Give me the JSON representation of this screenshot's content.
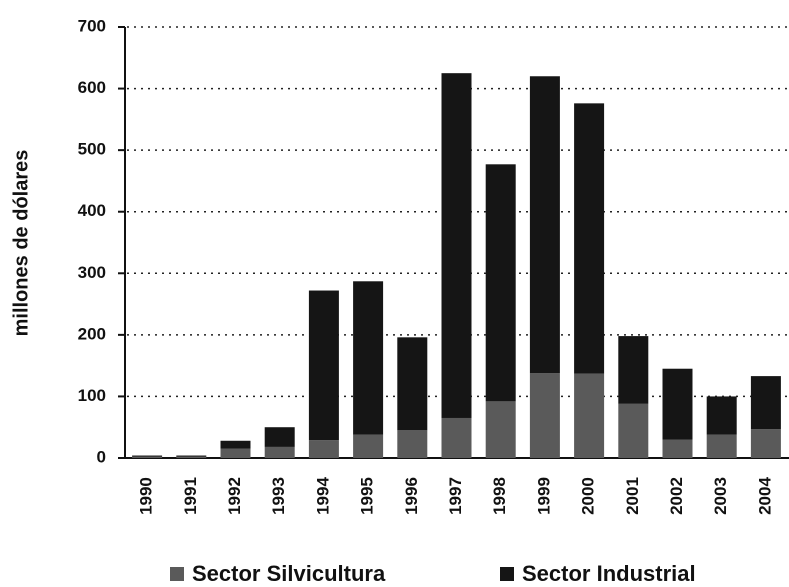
{
  "chart_data": {
    "type": "stacked_bar",
    "y_label": "millones de dólares",
    "categories": [
      "1990",
      "1991",
      "1992",
      "1993",
      "1994",
      "1995",
      "1996",
      "1997",
      "1998",
      "1999",
      "2000",
      "2001",
      "2002",
      "2003",
      "2004"
    ],
    "series": [
      {
        "name": "Sector Silvicultura",
        "color": "#5a5a5a",
        "values": [
          2,
          2,
          15,
          18,
          29,
          38,
          45,
          65,
          92,
          138,
          137,
          88,
          30,
          38,
          47
        ]
      },
      {
        "name": "Sector Industrial",
        "color": "#151515",
        "values": [
          2,
          2,
          13,
          32,
          243,
          249,
          151,
          560,
          385,
          482,
          439,
          110,
          115,
          62,
          86
        ]
      }
    ],
    "ylim": [
      0,
      700
    ],
    "yticks": [
      0,
      100,
      200,
      300,
      400,
      500,
      600,
      700
    ],
    "grid": true
  }
}
